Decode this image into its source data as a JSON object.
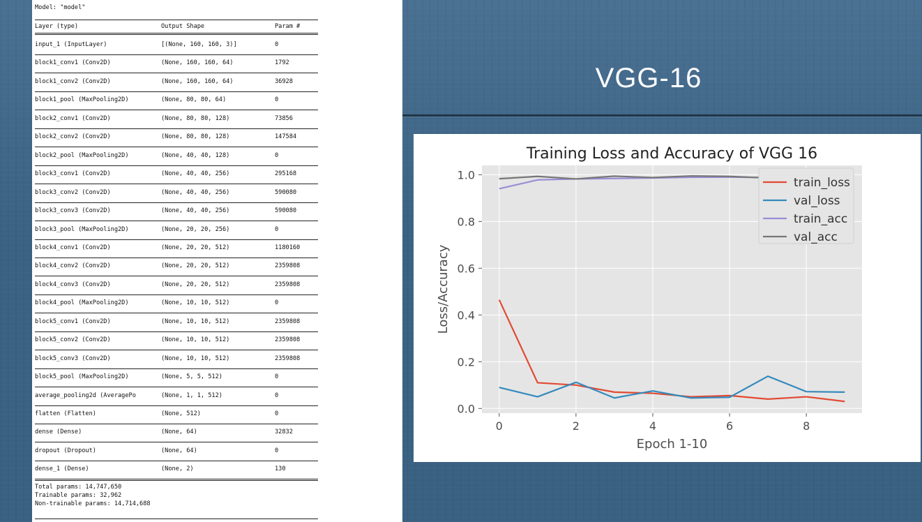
{
  "slide": {
    "title": "VGG-16"
  },
  "summary": {
    "model_line": "Model: \"model\"",
    "headers": {
      "layer": "Layer (type)",
      "shape": "Output Shape",
      "params": "Param #"
    },
    "rows": [
      {
        "layer": "input_1 (InputLayer)",
        "shape": "[(None, 160, 160, 3)]",
        "params": "0"
      },
      {
        "layer": "block1_conv1 (Conv2D)",
        "shape": "(None, 160, 160, 64)",
        "params": "1792"
      },
      {
        "layer": "block1_conv2 (Conv2D)",
        "shape": "(None, 160, 160, 64)",
        "params": "36928"
      },
      {
        "layer": "block1_pool (MaxPooling2D)",
        "shape": "(None, 80, 80, 64)",
        "params": "0"
      },
      {
        "layer": "block2_conv1 (Conv2D)",
        "shape": "(None, 80, 80, 128)",
        "params": "73856"
      },
      {
        "layer": "block2_conv2 (Conv2D)",
        "shape": "(None, 80, 80, 128)",
        "params": "147584"
      },
      {
        "layer": "block2_pool (MaxPooling2D)",
        "shape": "(None, 40, 40, 128)",
        "params": "0"
      },
      {
        "layer": "block3_conv1 (Conv2D)",
        "shape": "(None, 40, 40, 256)",
        "params": "295168"
      },
      {
        "layer": "block3_conv2 (Conv2D)",
        "shape": "(None, 40, 40, 256)",
        "params": "590080"
      },
      {
        "layer": "block3_conv3 (Conv2D)",
        "shape": "(None, 40, 40, 256)",
        "params": "590080"
      },
      {
        "layer": "block3_pool (MaxPooling2D)",
        "shape": "(None, 20, 20, 256)",
        "params": "0"
      },
      {
        "layer": "block4_conv1 (Conv2D)",
        "shape": "(None, 20, 20, 512)",
        "params": "1180160"
      },
      {
        "layer": "block4_conv2 (Conv2D)",
        "shape": "(None, 20, 20, 512)",
        "params": "2359808"
      },
      {
        "layer": "block4_conv3 (Conv2D)",
        "shape": "(None, 20, 20, 512)",
        "params": "2359808"
      },
      {
        "layer": "block4_pool (MaxPooling2D)",
        "shape": "(None, 10, 10, 512)",
        "params": "0"
      },
      {
        "layer": "block5_conv1 (Conv2D)",
        "shape": "(None, 10, 10, 512)",
        "params": "2359808"
      },
      {
        "layer": "block5_conv2 (Conv2D)",
        "shape": "(None, 10, 10, 512)",
        "params": "2359808"
      },
      {
        "layer": "block5_conv3 (Conv2D)",
        "shape": "(None, 10, 10, 512)",
        "params": "2359808"
      },
      {
        "layer": "block5_pool (MaxPooling2D)",
        "shape": "(None, 5, 5, 512)",
        "params": "0"
      },
      {
        "layer": "average_pooling2d (AveragePo",
        "shape": "(None, 1, 1, 512)",
        "params": "0"
      },
      {
        "layer": "flatten (Flatten)",
        "shape": "(None, 512)",
        "params": "0"
      },
      {
        "layer": "dense (Dense)",
        "shape": "(None, 64)",
        "params": "32832"
      },
      {
        "layer": "dropout (Dropout)",
        "shape": "(None, 64)",
        "params": "0"
      },
      {
        "layer": "dense_1 (Dense)",
        "shape": "(None, 2)",
        "params": "130"
      }
    ],
    "totals": {
      "total": "Total params: 14,747,650",
      "trainable": "Trainable params: 32,962",
      "non_trainable": "Non-trainable params: 14,714,688"
    }
  },
  "chart_data": {
    "type": "line",
    "title": "Training Loss and Accuracy of VGG 16",
    "xlabel": "Epoch 1-10",
    "ylabel": "Loss/Accuracy",
    "x": [
      0,
      1,
      2,
      3,
      4,
      5,
      6,
      7,
      8,
      9
    ],
    "xlim": [
      -0.45,
      9.45
    ],
    "ylim": [
      -0.02,
      1.04
    ],
    "xticks": [
      0,
      2,
      4,
      6,
      8
    ],
    "yticks": [
      0.0,
      0.2,
      0.4,
      0.6,
      0.8,
      1.0
    ],
    "ytick_labels": [
      "0.0",
      "0.2",
      "0.4",
      "0.6",
      "0.8",
      "1.0"
    ],
    "grid": true,
    "style": "ggplot",
    "legend_position": "top-right",
    "series": [
      {
        "name": "train_loss",
        "color": "#e24a33",
        "values": [
          0.465,
          0.11,
          0.1,
          0.07,
          0.065,
          0.05,
          0.055,
          0.04,
          0.05,
          0.03
        ]
      },
      {
        "name": "val_loss",
        "color": "#348abd",
        "values": [
          0.09,
          0.05,
          0.112,
          0.045,
          0.075,
          0.045,
          0.048,
          0.138,
          0.072,
          0.07
        ]
      },
      {
        "name": "train_acc",
        "color": "#988ed5",
        "values": [
          0.94,
          0.978,
          0.982,
          0.984,
          0.986,
          0.989,
          0.99,
          0.988,
          0.989,
          0.99
        ]
      },
      {
        "name": "val_acc",
        "color": "#777777",
        "values": [
          0.983,
          0.993,
          0.982,
          0.994,
          0.988,
          0.995,
          0.993,
          0.986,
          0.99,
          0.99
        ]
      }
    ]
  }
}
